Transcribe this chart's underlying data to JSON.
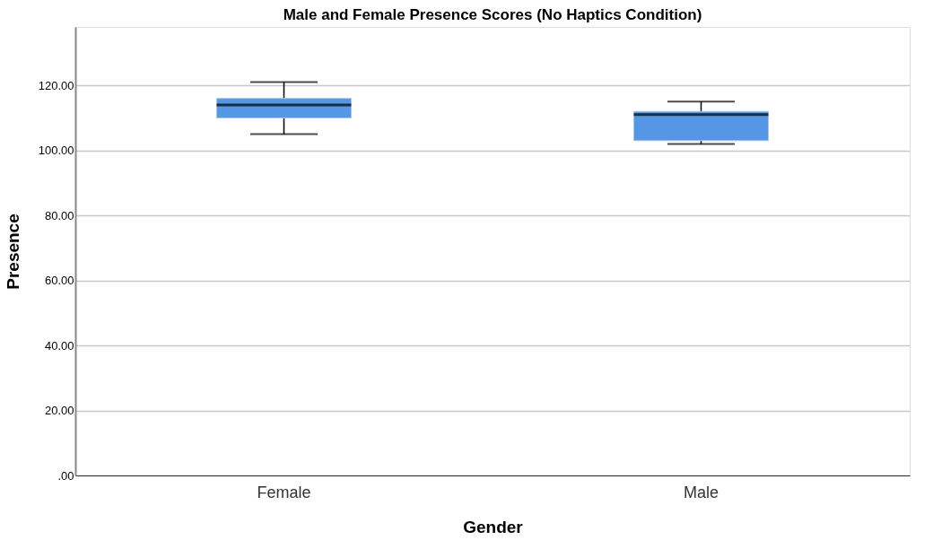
{
  "chart_data": {
    "type": "box",
    "title": "Male and Female Presence Scores (No Haptics Condition)",
    "xlabel": "Gender",
    "ylabel": "Presence",
    "categories": [
      "Female",
      "Male"
    ],
    "series": [
      {
        "color": "#5596e5",
        "boxes": [
          {
            "low": 105,
            "q1": 110,
            "median": 114,
            "q3": 116,
            "high": 121
          },
          {
            "low": 102,
            "q1": 103,
            "median": 111,
            "q3": 112,
            "high": 115
          }
        ]
      }
    ],
    "ylim": [
      0,
      138
    ],
    "yticks": [
      {
        "value": 0,
        "label": ".00"
      },
      {
        "value": 20,
        "label": "20.00"
      },
      {
        "value": 40,
        "label": "40.00"
      },
      {
        "value": 60,
        "label": "60.00"
      },
      {
        "value": 80,
        "label": "80.00"
      },
      {
        "value": 100,
        "label": "100.00"
      },
      {
        "value": 120,
        "label": "120.00"
      }
    ],
    "grid": "y"
  }
}
